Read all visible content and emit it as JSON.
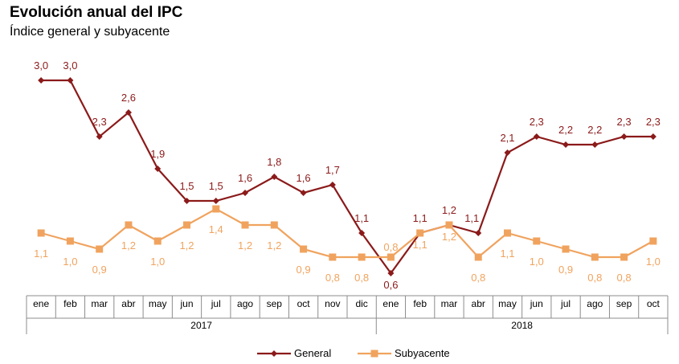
{
  "chart_data": {
    "type": "line",
    "title": "Evolución anual del IPC",
    "subtitle": "Índice general y subyacente",
    "categories": [
      "ene",
      "feb",
      "mar",
      "abr",
      "may",
      "jun",
      "jul",
      "ago",
      "sep",
      "oct",
      "nov",
      "dic",
      "ene",
      "feb",
      "mar",
      "abr",
      "may",
      "jun",
      "jul",
      "ago",
      "sep",
      "oct"
    ],
    "years": [
      {
        "label": "2017",
        "start": 0,
        "end": 11
      },
      {
        "label": "2018",
        "start": 12,
        "end": 21
      }
    ],
    "series": [
      {
        "name": "General",
        "color": "#8B1A1A",
        "marker": "diamond",
        "values": [
          3.0,
          3.0,
          2.3,
          2.6,
          1.9,
          1.5,
          1.5,
          1.6,
          1.8,
          1.6,
          1.7,
          1.1,
          0.6,
          1.1,
          1.2,
          1.1,
          2.1,
          2.3,
          2.2,
          2.2,
          2.3,
          2.3
        ],
        "labels": [
          "3,0",
          "3,0",
          "2,3",
          "2,6",
          "1,9",
          "1,5",
          "1,5",
          "1,6",
          "1,8",
          "1,6",
          "1,7",
          "1,1",
          "0,6",
          "1,1",
          "1,2",
          "1,1",
          "2,1",
          "2,3",
          "2,2",
          "2,2",
          "2,3",
          "2,3"
        ]
      },
      {
        "name": "Subyacente",
        "color": "#F0A35E",
        "marker": "square",
        "values": [
          1.1,
          1.0,
          0.9,
          1.2,
          1.0,
          1.2,
          1.4,
          1.2,
          1.2,
          0.9,
          0.8,
          0.8,
          0.8,
          1.1,
          1.2,
          0.8,
          1.1,
          1.0,
          0.9,
          0.8,
          0.8,
          1.0
        ],
        "labels": [
          "1,1",
          "1,0",
          "0,9",
          "1,2",
          "1,0",
          "1,2",
          "1,4",
          "1,2",
          "1,2",
          "0,9",
          "0,8",
          "0,8",
          "0,8",
          "1,1",
          "1,2",
          "0,8",
          "1,1",
          "1,0",
          "0,9",
          "0,8",
          "0,8",
          "1,0"
        ]
      }
    ],
    "ylim": [
      0.4,
      3.3
    ],
    "grid": false,
    "legend": "bottom-center"
  }
}
